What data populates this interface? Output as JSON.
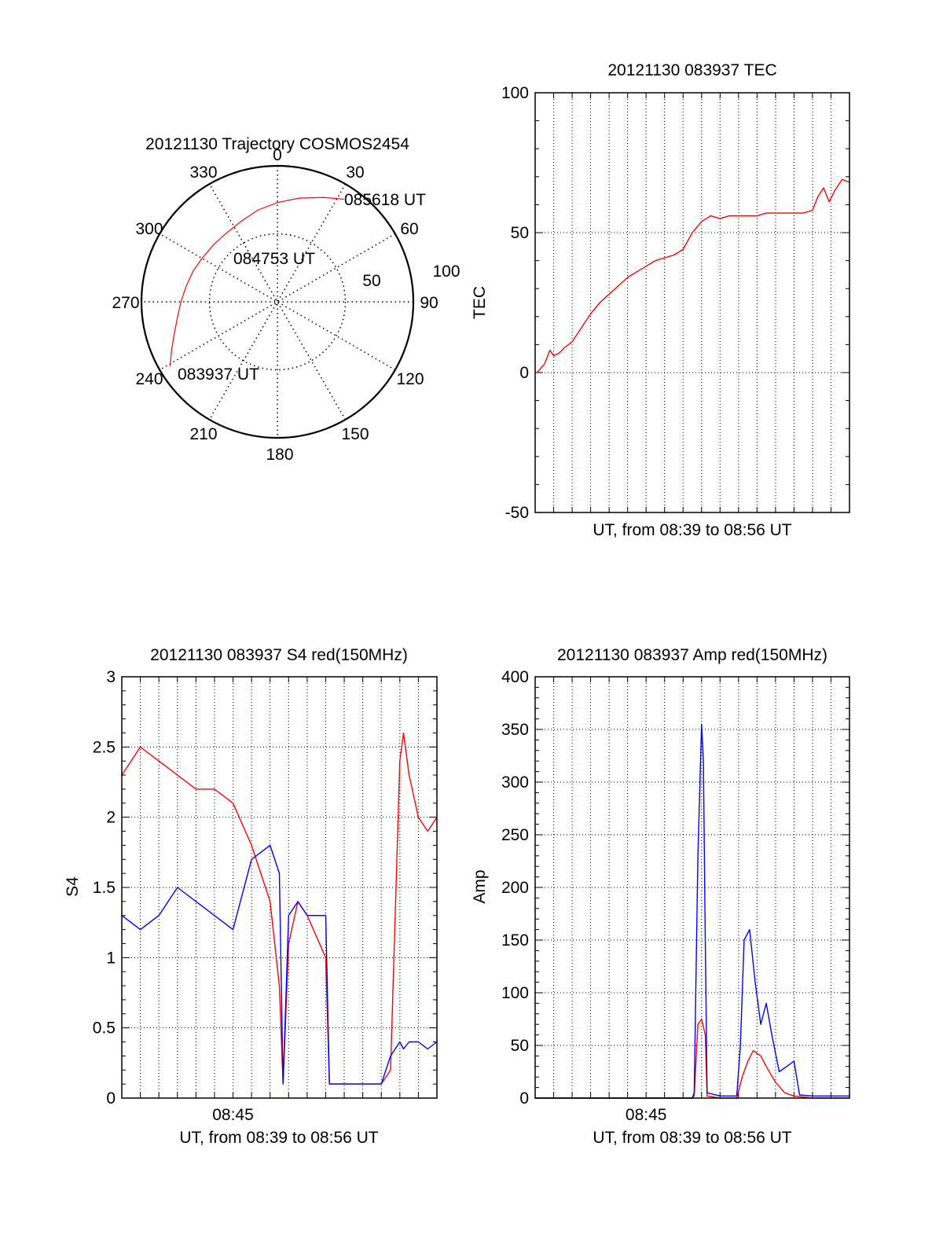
{
  "colors": {
    "red": "#ff0000",
    "blue": "#0000ff",
    "axis": "#000000",
    "grid": "#000000"
  },
  "chart_data": [
    {
      "id": "trajectory",
      "type": "polar",
      "title": "20121130 Trajectory COSMOS2454",
      "angle_labels": [
        "0",
        "30",
        "60",
        "90",
        "120",
        "150",
        "180",
        "210",
        "240",
        "270",
        "300",
        "330"
      ],
      "radial_labels": [
        "50",
        "100"
      ],
      "rlim": [
        0,
        100
      ],
      "grid": true,
      "annotations": [
        "085618 UT",
        "084753 UT",
        "083937 UT"
      ],
      "series": [
        {
          "color": "red",
          "points": [
            {
              "az": 239,
              "r": 92
            },
            {
              "az": 245,
              "r": 86
            },
            {
              "az": 252,
              "r": 80
            },
            {
              "az": 260,
              "r": 75
            },
            {
              "az": 270,
              "r": 71
            },
            {
              "az": 280,
              "r": 68
            },
            {
              "az": 290,
              "r": 66
            },
            {
              "az": 300,
              "r": 64
            },
            {
              "az": 312,
              "r": 63
            },
            {
              "az": 324,
              "r": 63
            },
            {
              "az": 336,
              "r": 65
            },
            {
              "az": 348,
              "r": 69
            },
            {
              "az": 360,
              "r": 73
            },
            {
              "az": 372,
              "r": 78
            },
            {
              "az": 384,
              "r": 84
            },
            {
              "az": 393,
              "r": 90
            }
          ]
        }
      ]
    },
    {
      "id": "tec",
      "type": "line",
      "title": "20121130 083937 TEC",
      "xlabel": "UT, from 08:39 to 08:56 UT",
      "ylabel": "TEC",
      "ylim": [
        -50,
        100
      ],
      "yticks": [
        "-50",
        "0",
        "50",
        "100"
      ],
      "xlim": [
        0,
        17
      ],
      "xticks": [],
      "grid": true,
      "series": [
        {
          "color": "red",
          "x": [
            0.1,
            0.5,
            0.8,
            1.0,
            1.3,
            1.6,
            2.0,
            2.5,
            3.0,
            3.5,
            4.0,
            4.5,
            5.0,
            5.5,
            6.0,
            6.5,
            7.0,
            7.5,
            8.0,
            8.5,
            9.0,
            9.5,
            10.0,
            10.5,
            11.0,
            11.5,
            12.0,
            12.5,
            13.0,
            13.5,
            14.0,
            14.5,
            15.0,
            15.3,
            15.6,
            15.9,
            16.2,
            16.6,
            17.0
          ],
          "y": [
            0,
            3,
            8,
            6,
            7,
            9,
            11,
            16,
            21,
            25,
            28,
            31,
            34,
            36,
            38,
            40,
            41,
            42,
            44,
            50,
            54,
            56,
            55,
            56,
            56,
            56,
            56,
            57,
            57,
            57,
            57,
            57,
            58,
            63,
            66,
            61,
            65,
            69,
            68
          ]
        }
      ]
    },
    {
      "id": "s4",
      "type": "line",
      "title": "20121130 083937 S4 red(150MHz)",
      "xlabel": "UT, from 08:39 to 08:56 UT",
      "ylabel": "S4",
      "ylim": [
        0,
        3
      ],
      "yticks": [
        "0",
        "0.5",
        "1",
        "1.5",
        "2",
        "2.5",
        "3"
      ],
      "xlim": [
        0,
        17
      ],
      "xticks": [
        {
          "x": 6,
          "label": "08:45"
        }
      ],
      "grid": true,
      "series": [
        {
          "color": "red",
          "x": [
            0,
            1,
            2,
            3,
            4,
            5,
            6,
            7,
            8,
            8.5,
            8.7,
            9,
            9.5,
            10,
            11,
            11.2,
            11.5,
            12,
            13,
            14,
            14.5,
            15,
            15.2,
            15.5,
            16,
            16.5,
            17
          ],
          "y": [
            2.3,
            2.5,
            2.4,
            2.3,
            2.2,
            2.2,
            2.1,
            1.8,
            1.4,
            0.8,
            0.1,
            1.1,
            1.4,
            1.3,
            1.0,
            0.1,
            0.1,
            0.1,
            0.1,
            0.1,
            0.2,
            2.4,
            2.6,
            2.3,
            2.0,
            1.9,
            2.0
          ]
        },
        {
          "color": "blue",
          "x": [
            0,
            1,
            2,
            3,
            4,
            5,
            6,
            7,
            8,
            8.5,
            8.7,
            9,
            9.5,
            10,
            11,
            11.2,
            11.5,
            12,
            13,
            14,
            14.5,
            15,
            15.2,
            15.5,
            16,
            16.5,
            17
          ],
          "y": [
            1.3,
            1.2,
            1.3,
            1.5,
            1.4,
            1.3,
            1.2,
            1.7,
            1.8,
            1.6,
            0.1,
            1.3,
            1.4,
            1.3,
            1.3,
            0.1,
            0.1,
            0.1,
            0.1,
            0.1,
            0.3,
            0.4,
            0.35,
            0.4,
            0.4,
            0.35,
            0.4
          ]
        }
      ]
    },
    {
      "id": "amp",
      "type": "line",
      "title": "20121130 083937 Amp red(150MHz)",
      "xlabel": "UT, from 08:39 to 08:56 UT",
      "ylabel": "Amp",
      "ylim": [
        0,
        400
      ],
      "yticks": [
        "0",
        "50",
        "100",
        "150",
        "200",
        "250",
        "300",
        "350",
        "400"
      ],
      "xlim": [
        0,
        17
      ],
      "xticks": [
        {
          "x": 6,
          "label": "08:45"
        }
      ],
      "grid": true,
      "series": [
        {
          "color": "red",
          "x": [
            0,
            4,
            8.5,
            8.6,
            8.8,
            9.0,
            9.2,
            9.3,
            10,
            10.9,
            11.2,
            11.5,
            11.8,
            12.2,
            12.5,
            13,
            13.5,
            14,
            15,
            17
          ],
          "y": [
            0,
            0,
            0,
            2,
            70,
            75,
            60,
            2,
            0,
            0,
            20,
            35,
            45,
            40,
            30,
            15,
            5,
            2,
            0,
            0
          ]
        },
        {
          "color": "blue",
          "x": [
            0,
            4,
            8.5,
            8.6,
            8.8,
            9.0,
            9.1,
            9.2,
            9.3,
            10,
            10.9,
            11.1,
            11.3,
            11.6,
            11.9,
            12.2,
            12.5,
            12.8,
            13.2,
            13.6,
            14.0,
            14.3,
            15,
            17
          ],
          "y": [
            0,
            0,
            0,
            5,
            230,
            355,
            320,
            150,
            5,
            2,
            2,
            50,
            150,
            160,
            110,
            70,
            90,
            60,
            25,
            30,
            35,
            3,
            2,
            2
          ]
        }
      ]
    }
  ]
}
